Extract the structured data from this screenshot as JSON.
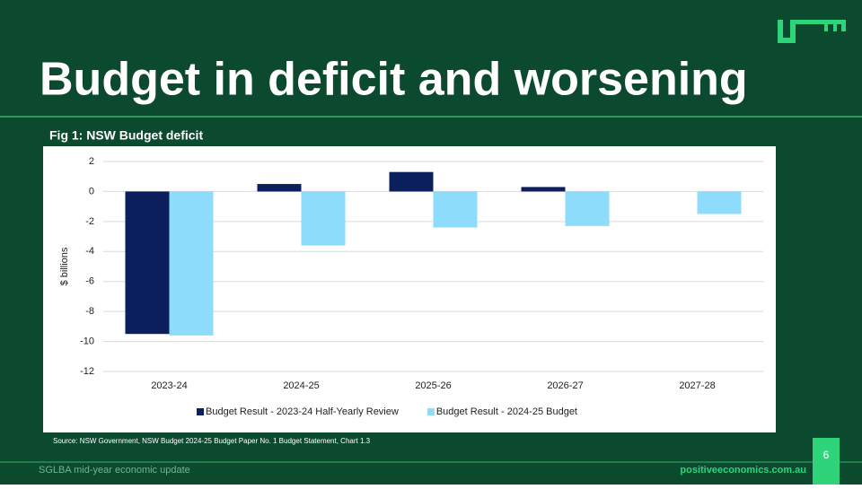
{
  "slide": {
    "title": "Budget in deficit and worsening",
    "figure_label": "Fig 1: NSW Budget deficit",
    "source": "Source: NSW Government, NSW Budget 2024-25 Budget Paper No. 1 Budget Statement, Chart 1.3",
    "footer_left": "SGLBA mid-year economic update",
    "footer_right": "positiveeconomics.com.au",
    "page_number": "6"
  },
  "chart_data": {
    "type": "bar",
    "y_label": "$ billions",
    "categories": [
      "2023-24",
      "2024-25",
      "2025-26",
      "2026-27",
      "2027-28"
    ],
    "series": [
      {
        "name": "Budget Result - 2023-24 Half-Yearly Review",
        "color": "#0b1f5c",
        "values": [
          -9.5,
          0.5,
          1.3,
          0.3,
          null
        ]
      },
      {
        "name": "Budget Result - 2024-25 Budget",
        "color": "#8ddcfb",
        "values": [
          -9.6,
          -3.6,
          -2.4,
          -2.3,
          -1.5
        ]
      }
    ],
    "ylim": [
      -12,
      2
    ],
    "yticks": [
      2,
      0,
      -2,
      -4,
      -6,
      -8,
      -10,
      -12
    ],
    "grid": true,
    "legend": "bottom"
  }
}
